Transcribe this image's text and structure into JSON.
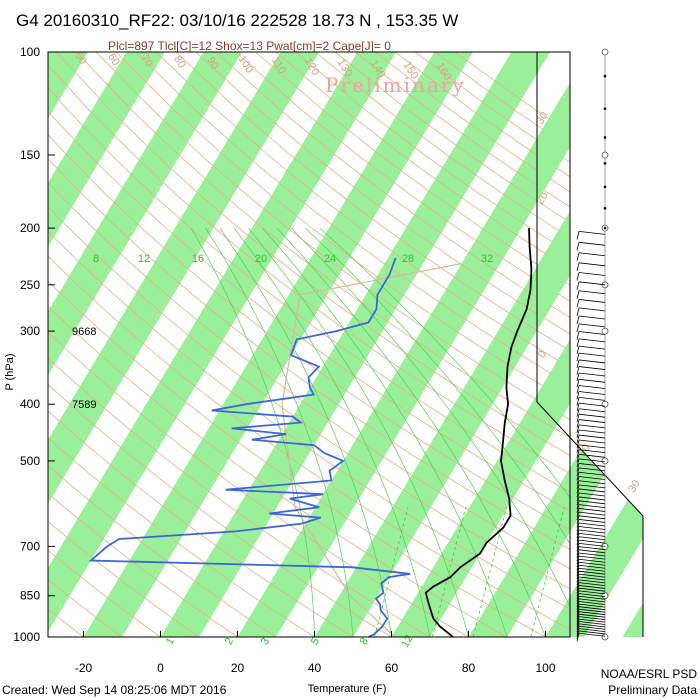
{
  "title": "G4 20160310_RF22: 03/10/16 222528  18.73 N , 153.35 W",
  "subtitle": "Plcl=897 Tlcl[C]=12 Shox=13 Pwat[cm]=2 Cape[J]= 0",
  "watermark": "Preliminary",
  "footer_left": "Created: Wed Sep 14 08:25:06 MDT 2016",
  "footer_right_1": "NOAA/ESRL PSD",
  "footer_right_2": "Preliminary Data",
  "colors": {
    "isotherm_band": "#99f099",
    "temperature": "#000000",
    "dewpoint": "#3a66dd",
    "dry_adiabat": "#e2b08a",
    "moist_adiabat": "#55cc55",
    "mixing_ratio": "#33cc33",
    "parcel": "#d8b89a"
  },
  "chart_data": {
    "type": "skew-t",
    "xlabel": "Temperature (F)",
    "ylabel": "P (hPa)",
    "x_ticks": [
      "-20",
      "0",
      "20",
      "40",
      "60",
      "80",
      "100"
    ],
    "y_ticks": [
      "100",
      "150",
      "200",
      "250",
      "300",
      "400",
      "500",
      "700",
      "850",
      "1000"
    ],
    "y_scale": "log",
    "ylim": [
      1000,
      100
    ],
    "height_labels": [
      {
        "value": "9668",
        "p": 300
      },
      {
        "value": "7589",
        "p": 400
      }
    ],
    "mixing_ratio_labels": [
      "8",
      "12",
      "16",
      "20",
      "24",
      "28",
      "32"
    ],
    "dry_adiabat_labels": [
      "50",
      "60",
      "70",
      "80",
      "90",
      "100",
      "110",
      "120",
      "130",
      "140",
      "150",
      "160"
    ],
    "secondary_labels": [
      "30",
      "20",
      "10",
      "0",
      "10",
      "20",
      "30"
    ],
    "bottom_mixing_labels": [
      "1",
      "2",
      "3",
      "5",
      "8",
      "12"
    ],
    "temperature": [
      {
        "p": 200,
        "t": 32
      },
      {
        "p": 215,
        "t": 35
      },
      {
        "p": 235,
        "t": 39
      },
      {
        "p": 255,
        "t": 42
      },
      {
        "p": 275,
        "t": 44
      },
      {
        "p": 300,
        "t": 45
      },
      {
        "p": 320,
        "t": 46
      },
      {
        "p": 345,
        "t": 48
      },
      {
        "p": 375,
        "t": 51
      },
      {
        "p": 400,
        "t": 54
      },
      {
        "p": 430,
        "t": 56
      },
      {
        "p": 470,
        "t": 59
      },
      {
        "p": 500,
        "t": 61
      },
      {
        "p": 540,
        "t": 65
      },
      {
        "p": 580,
        "t": 69
      },
      {
        "p": 620,
        "t": 72
      },
      {
        "p": 650,
        "t": 72
      },
      {
        "p": 690,
        "t": 70
      },
      {
        "p": 720,
        "t": 70
      },
      {
        "p": 760,
        "t": 67
      },
      {
        "p": 790,
        "t": 66
      },
      {
        "p": 820,
        "t": 63
      },
      {
        "p": 840,
        "t": 62
      },
      {
        "p": 870,
        "t": 64
      },
      {
        "p": 900,
        "t": 66
      },
      {
        "p": 930,
        "t": 68
      },
      {
        "p": 960,
        "t": 71
      },
      {
        "p": 1000,
        "t": 76
      }
    ],
    "dewpoint": [
      {
        "p": 225,
        "t": 2
      },
      {
        "p": 240,
        "t": 3
      },
      {
        "p": 260,
        "t": 3
      },
      {
        "p": 275,
        "t": 5
      },
      {
        "p": 290,
        "t": 5
      },
      {
        "p": 300,
        "t": -2
      },
      {
        "p": 310,
        "t": -11
      },
      {
        "p": 330,
        "t": -10
      },
      {
        "p": 345,
        "t": -1
      },
      {
        "p": 360,
        "t": -2
      },
      {
        "p": 375,
        "t": 0
      },
      {
        "p": 385,
        "t": 2
      },
      {
        "p": 400,
        "t": -14
      },
      {
        "p": 410,
        "t": -22
      },
      {
        "p": 420,
        "t": 0
      },
      {
        "p": 430,
        "t": 3
      },
      {
        "p": 440,
        "t": -14
      },
      {
        "p": 450,
        "t": 1
      },
      {
        "p": 460,
        "t": -7
      },
      {
        "p": 470,
        "t": 10
      },
      {
        "p": 485,
        "t": 14
      },
      {
        "p": 495,
        "t": 18
      },
      {
        "p": 500,
        "t": 20
      },
      {
        "p": 520,
        "t": 18
      },
      {
        "p": 540,
        "t": 20
      },
      {
        "p": 560,
        "t": -6
      },
      {
        "p": 570,
        "t": 20
      },
      {
        "p": 580,
        "t": 12
      },
      {
        "p": 600,
        "t": 21
      },
      {
        "p": 615,
        "t": 9
      },
      {
        "p": 625,
        "t": 23
      },
      {
        "p": 640,
        "t": 19
      },
      {
        "p": 660,
        "t": 3
      },
      {
        "p": 680,
        "t": -26
      },
      {
        "p": 700,
        "t": -28
      },
      {
        "p": 740,
        "t": -30
      },
      {
        "p": 760,
        "t": 39
      },
      {
        "p": 780,
        "t": 55
      },
      {
        "p": 790,
        "t": 50
      },
      {
        "p": 810,
        "t": 49
      },
      {
        "p": 840,
        "t": 51
      },
      {
        "p": 860,
        "t": 50
      },
      {
        "p": 880,
        "t": 52
      },
      {
        "p": 900,
        "t": 53
      },
      {
        "p": 930,
        "t": 56
      },
      {
        "p": 960,
        "t": 56
      },
      {
        "p": 990,
        "t": 55
      },
      {
        "p": 1000,
        "t": 54
      }
    ]
  }
}
